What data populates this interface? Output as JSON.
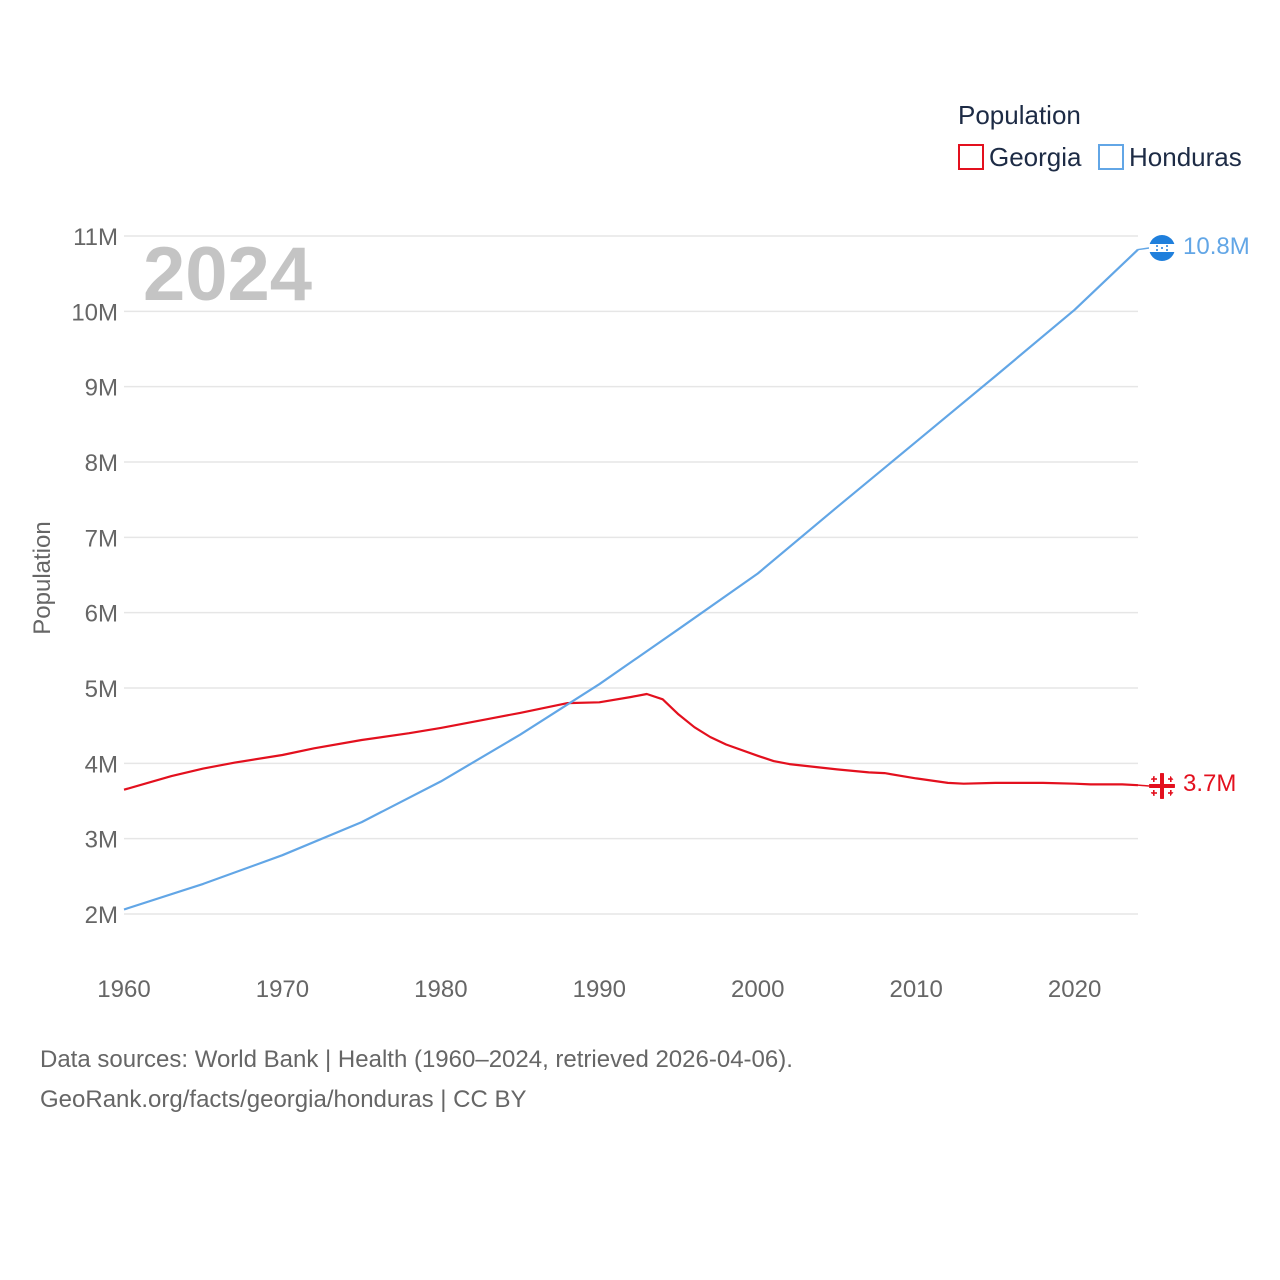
{
  "chart_data": {
    "type": "line",
    "year_label": "2024",
    "legend": {
      "title": "Population"
    },
    "ylabel": "Population",
    "xlim": [
      1960,
      2024
    ],
    "ylim": [
      1500000,
      11000000
    ],
    "x_ticks": [
      1960,
      1970,
      1980,
      1990,
      2000,
      2010,
      2020
    ],
    "x_tick_labels": [
      "1960",
      "1970",
      "1980",
      "1990",
      "2000",
      "2010",
      "2020"
    ],
    "y_ticks": [
      2000000,
      3000000,
      4000000,
      5000000,
      6000000,
      7000000,
      8000000,
      9000000,
      10000000,
      11000000
    ],
    "y_tick_labels": [
      "2M",
      "3M",
      "4M",
      "5M",
      "6M",
      "7M",
      "8M",
      "9M",
      "10M",
      "11M"
    ],
    "series": [
      {
        "name": "Georgia",
        "color": "#e3101e",
        "end_label": "3.7M",
        "icon": "georgia-flag-icon",
        "x": [
          1960,
          1963,
          1965,
          1967,
          1970,
          1972,
          1975,
          1978,
          1980,
          1983,
          1985,
          1988,
          1990,
          1992,
          1993,
          1994,
          1995,
          1996,
          1997,
          1998,
          2000,
          2001,
          2002,
          2005,
          2007,
          2008,
          2010,
          2012,
          2013,
          2015,
          2018,
          2020,
          2021,
          2023,
          2024
        ],
        "values": [
          3650000,
          3830000,
          3930000,
          4010000,
          4110000,
          4200000,
          4310000,
          4400000,
          4470000,
          4590000,
          4670000,
          4800000,
          4810000,
          4880000,
          4920000,
          4850000,
          4650000,
          4480000,
          4350000,
          4250000,
          4100000,
          4030000,
          3990000,
          3920000,
          3880000,
          3870000,
          3800000,
          3740000,
          3730000,
          3740000,
          3740000,
          3730000,
          3720000,
          3720000,
          3710000
        ]
      },
      {
        "name": "Honduras",
        "color": "#62a6e6",
        "end_label": "10.8M",
        "icon": "honduras-flag-icon",
        "x": [
          1960,
          1965,
          1970,
          1975,
          1980,
          1985,
          1990,
          1995,
          2000,
          2005,
          2010,
          2015,
          2020,
          2024
        ],
        "values": [
          2060000,
          2400000,
          2780000,
          3220000,
          3760000,
          4380000,
          5050000,
          5780000,
          6520000,
          7400000,
          8270000,
          9140000,
          10020000,
          10820000
        ]
      }
    ]
  },
  "footer": {
    "line1": "Data sources: World Bank | Health (1960–2024, retrieved 2026-04-06).",
    "line2": "GeoRank.org/facts/georgia/honduras | CC BY"
  }
}
